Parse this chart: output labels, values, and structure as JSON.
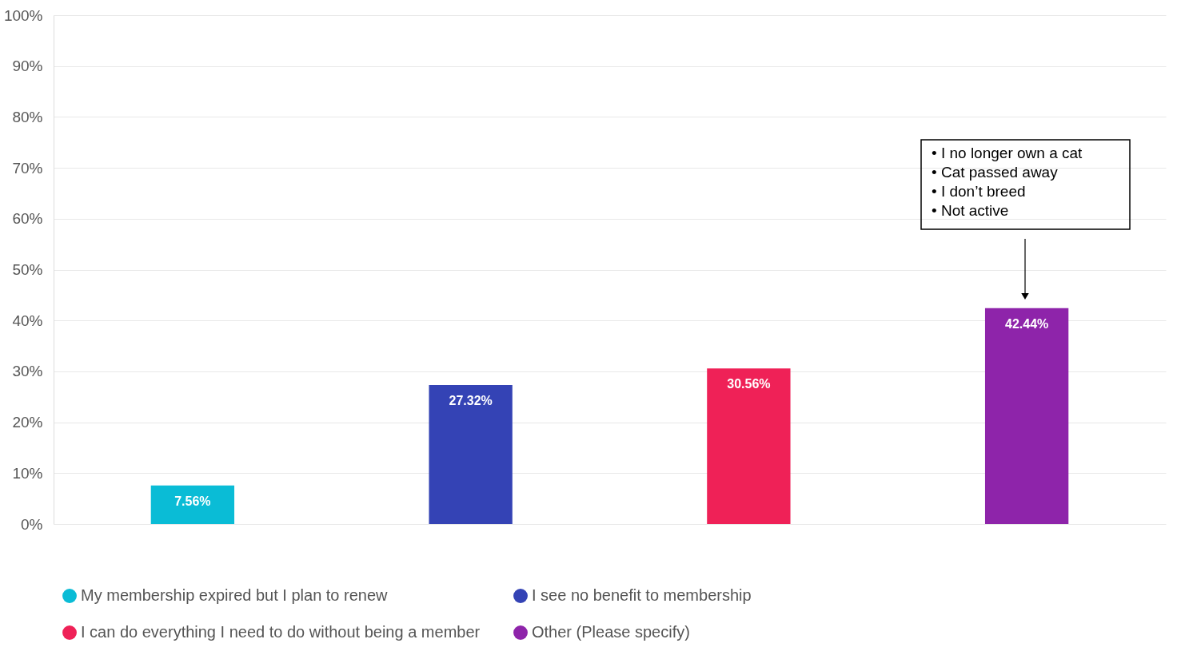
{
  "chart_data": {
    "type": "bar",
    "categories": [
      null,
      null,
      null,
      null
    ],
    "series": [
      {
        "name": "My membership expired but I plan to renew",
        "color": "#0abcd6",
        "values": [
          7.56,
          null,
          null,
          null
        ],
        "value_labels": [
          "7.56%",
          null,
          null,
          null
        ]
      },
      {
        "name": "I see no benefit to membership",
        "color": "#3443b5",
        "values": [
          null,
          27.32,
          null,
          null
        ],
        "value_labels": [
          null,
          "27.32%",
          null,
          null
        ]
      },
      {
        "name": "I can do everything I need to do without being a member",
        "color": "#ef2157",
        "values": [
          null,
          null,
          30.56,
          null
        ],
        "value_labels": [
          null,
          null,
          "30.56%",
          null
        ]
      },
      {
        "name": "Other (Please specify)",
        "color": "#8e24aa",
        "values": [
          null,
          null,
          null,
          42.44
        ],
        "value_labels": [
          null,
          null,
          null,
          "42.44%"
        ]
      }
    ],
    "ylim": [
      0,
      100
    ],
    "yticks": [
      {
        "value": 0,
        "label": "0%"
      },
      {
        "value": 10,
        "label": "10%"
      },
      {
        "value": 20,
        "label": "20%"
      },
      {
        "value": 30,
        "label": "30%"
      },
      {
        "value": 40,
        "label": "40%"
      },
      {
        "value": 50,
        "label": "50%"
      },
      {
        "value": 60,
        "label": "60%"
      },
      {
        "value": 70,
        "label": "70%"
      },
      {
        "value": 80,
        "label": "80%"
      },
      {
        "value": 90,
        "label": "90%"
      },
      {
        "value": 100,
        "label": "100%"
      }
    ],
    "grid": "y",
    "legend": "bottom",
    "annotations": [
      "•   I no longer own a cat\n•   Cat passed away\n•   I don’t breed\n•   Not active"
    ]
  }
}
